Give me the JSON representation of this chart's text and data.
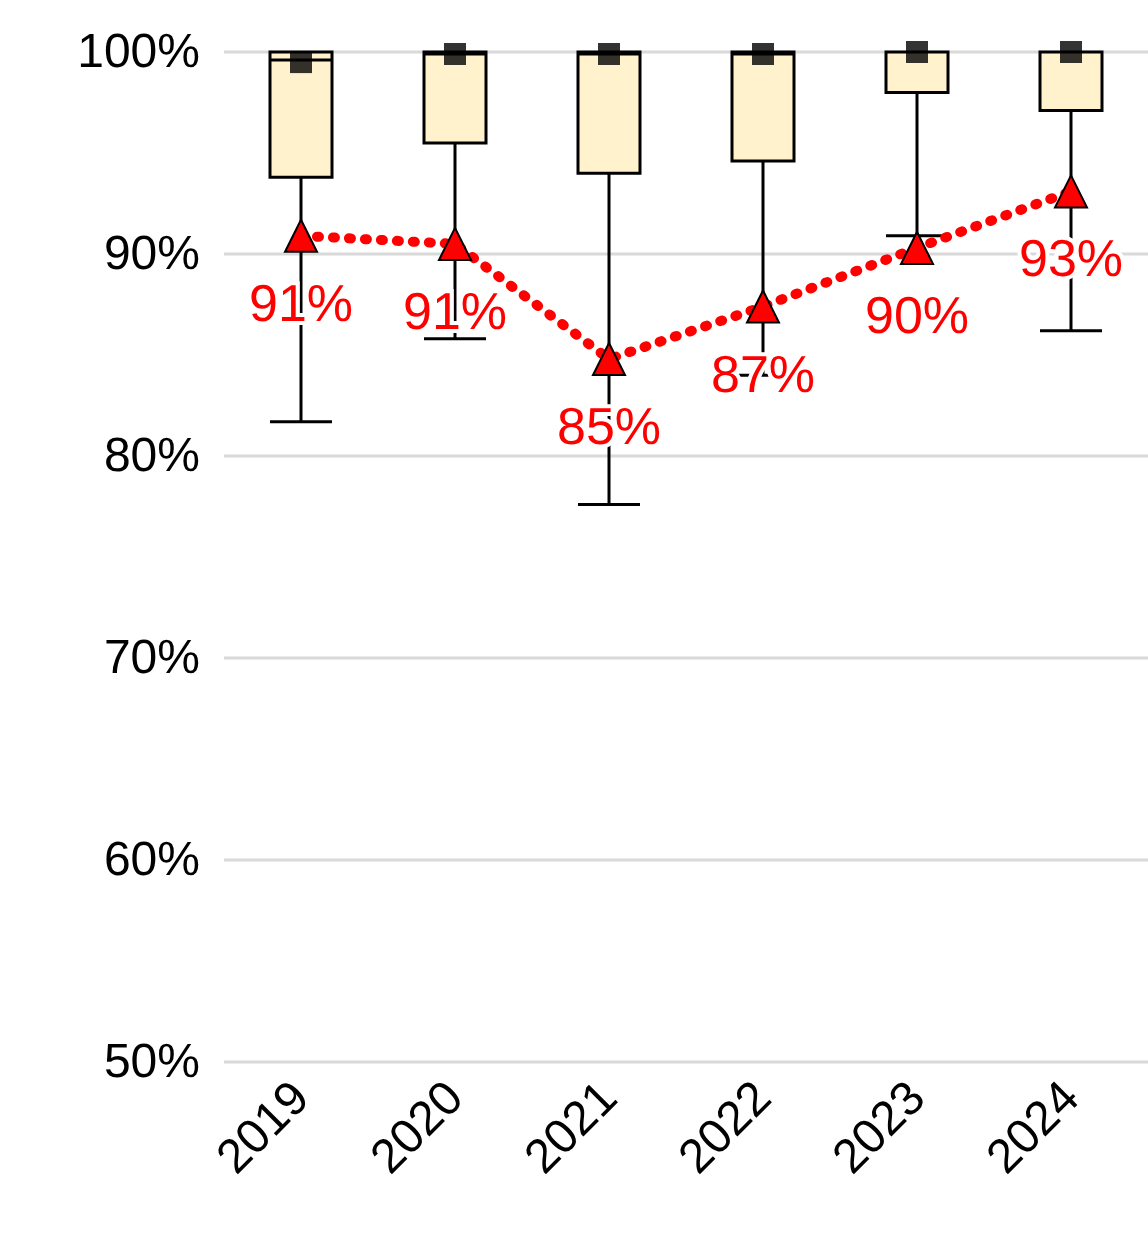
{
  "chart_data": {
    "type": "box",
    "categories": [
      "2019",
      "2020",
      "2021",
      "2022",
      "2023",
      "2024"
    ],
    "series": [
      {
        "color": "#fff2cc",
        "boxes": [
          {
            "low": 81.7,
            "q1": 93.8,
            "median": 99.6,
            "q3": 100,
            "high": 100,
            "mean": 99.5
          },
          {
            "low": 85.8,
            "q1": 95.5,
            "median": 99.9,
            "q3": 100,
            "high": 100,
            "mean": 99.9
          },
          {
            "low": 77.6,
            "q1": 94.0,
            "median": 99.9,
            "q3": 100,
            "high": 100,
            "mean": 99.9
          },
          {
            "low": 84.0,
            "q1": 94.6,
            "median": 99.9,
            "q3": 100,
            "high": 100,
            "mean": 99.9
          },
          {
            "low": 90.9,
            "q1": 98.0,
            "median": 100,
            "q3": 100,
            "high": 100,
            "mean": 100
          },
          {
            "low": 86.2,
            "q1": 97.1,
            "median": 100,
            "q3": 100,
            "high": 100,
            "mean": 100
          }
        ]
      },
      {
        "type": "line",
        "color": "#ff0000",
        "marker": "triangle",
        "line_style": "dotted",
        "values": [
          90.9,
          90.5,
          84.8,
          87.4,
          90.3,
          93.1
        ],
        "value_labels": [
          "91%",
          "91%",
          "85%",
          "87%",
          "90%",
          "93%"
        ]
      }
    ],
    "ylim": [
      50,
      100
    ],
    "yticks": [
      {
        "value": 50,
        "label": "50%"
      },
      {
        "value": 60,
        "label": "60%"
      },
      {
        "value": 70,
        "label": "70%"
      },
      {
        "value": 80,
        "label": "80%"
      },
      {
        "value": 90,
        "label": "90%"
      },
      {
        "value": 100,
        "label": "100%"
      }
    ],
    "grid": "y"
  }
}
